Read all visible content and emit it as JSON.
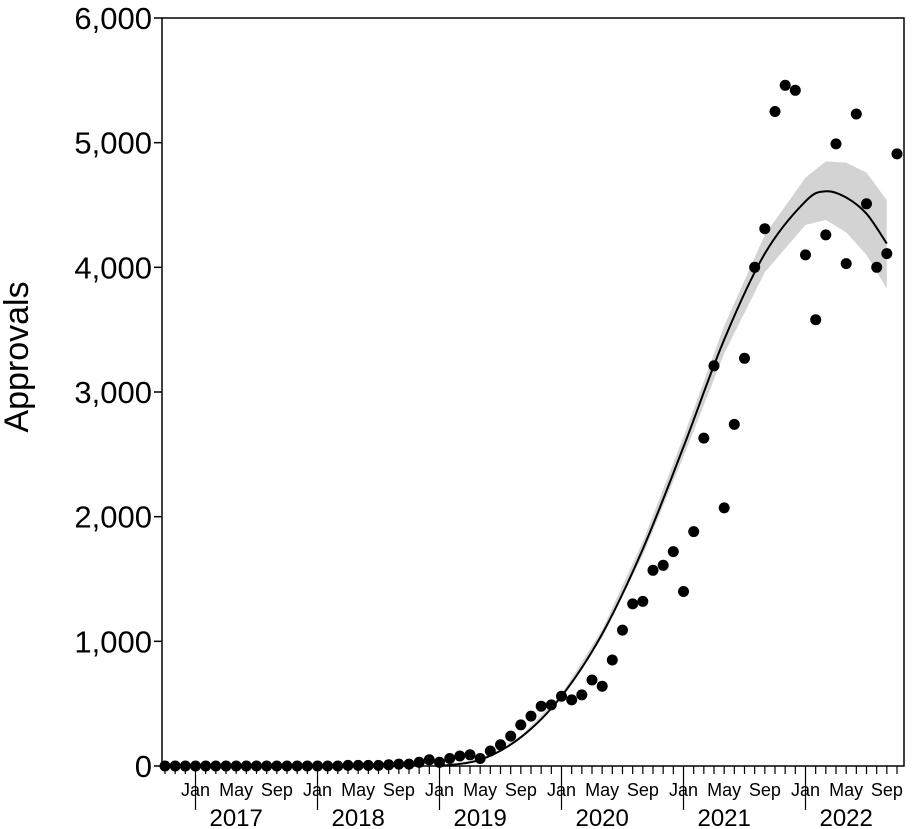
{
  "chart_data": {
    "type": "scatter",
    "title": "",
    "xlabel": "",
    "ylabel": "Approvals",
    "ylim": [
      0,
      6000
    ],
    "y_ticks": [
      0,
      1000,
      2000,
      3000,
      4000,
      5000,
      6000
    ],
    "y_tick_labels": [
      "0",
      "1,000",
      "2,000",
      "3,000",
      "4,000",
      "5,000",
      "6,000"
    ],
    "xlim": [
      "2016-10",
      "2022-09"
    ],
    "x_month_ticks": [
      {
        "date": "2017-01",
        "label": "Jan"
      },
      {
        "date": "2017-05",
        "label": "May"
      },
      {
        "date": "2017-09",
        "label": "Sep"
      },
      {
        "date": "2018-01",
        "label": "Jan"
      },
      {
        "date": "2018-05",
        "label": "May"
      },
      {
        "date": "2018-09",
        "label": "Sep"
      },
      {
        "date": "2019-01",
        "label": "Jan"
      },
      {
        "date": "2019-05",
        "label": "May"
      },
      {
        "date": "2019-09",
        "label": "Sep"
      },
      {
        "date": "2020-01",
        "label": "Jan"
      },
      {
        "date": "2020-05",
        "label": "May"
      },
      {
        "date": "2020-09",
        "label": "Sep"
      },
      {
        "date": "2021-01",
        "label": "Jan"
      },
      {
        "date": "2021-05",
        "label": "May"
      },
      {
        "date": "2021-09",
        "label": "Sep"
      },
      {
        "date": "2022-01",
        "label": "Jan"
      },
      {
        "date": "2022-05",
        "label": "May"
      },
      {
        "date": "2022-09",
        "label": "Sep"
      }
    ],
    "x_year_labels": [
      {
        "date": "2017-05",
        "label": "2017"
      },
      {
        "date": "2018-05",
        "label": "2018"
      },
      {
        "date": "2019-05",
        "label": "2019"
      },
      {
        "date": "2020-05",
        "label": "2020"
      },
      {
        "date": "2021-05",
        "label": "2021"
      },
      {
        "date": "2022-05",
        "label": "2022"
      }
    ],
    "series": [
      {
        "type": "scatter",
        "points": [
          {
            "x": "2016-10",
            "y": 0
          },
          {
            "x": "2016-11",
            "y": 0
          },
          {
            "x": "2016-12",
            "y": 0
          },
          {
            "x": "2017-01",
            "y": 0
          },
          {
            "x": "2017-02",
            "y": 0
          },
          {
            "x": "2017-03",
            "y": 0
          },
          {
            "x": "2017-04",
            "y": 0
          },
          {
            "x": "2017-05",
            "y": 0
          },
          {
            "x": "2017-06",
            "y": 0
          },
          {
            "x": "2017-07",
            "y": 0
          },
          {
            "x": "2017-08",
            "y": 0
          },
          {
            "x": "2017-09",
            "y": 0
          },
          {
            "x": "2017-10",
            "y": 0
          },
          {
            "x": "2017-11",
            "y": 0
          },
          {
            "x": "2017-12",
            "y": 0
          },
          {
            "x": "2018-01",
            "y": 0
          },
          {
            "x": "2018-02",
            "y": 0
          },
          {
            "x": "2018-03",
            "y": 0
          },
          {
            "x": "2018-04",
            "y": 5
          },
          {
            "x": "2018-05",
            "y": 5
          },
          {
            "x": "2018-06",
            "y": 5
          },
          {
            "x": "2018-07",
            "y": 5
          },
          {
            "x": "2018-08",
            "y": 10
          },
          {
            "x": "2018-09",
            "y": 15
          },
          {
            "x": "2018-10",
            "y": 15
          },
          {
            "x": "2018-11",
            "y": 30
          },
          {
            "x": "2018-12",
            "y": 50
          },
          {
            "x": "2019-01",
            "y": 30
          },
          {
            "x": "2019-02",
            "y": 60
          },
          {
            "x": "2019-03",
            "y": 80
          },
          {
            "x": "2019-04",
            "y": 90
          },
          {
            "x": "2019-05",
            "y": 60
          },
          {
            "x": "2019-06",
            "y": 120
          },
          {
            "x": "2019-07",
            "y": 170
          },
          {
            "x": "2019-08",
            "y": 240
          },
          {
            "x": "2019-09",
            "y": 330
          },
          {
            "x": "2019-10",
            "y": 400
          },
          {
            "x": "2019-11",
            "y": 480
          },
          {
            "x": "2019-12",
            "y": 490
          },
          {
            "x": "2020-01",
            "y": 560
          },
          {
            "x": "2020-02",
            "y": 530
          },
          {
            "x": "2020-03",
            "y": 570
          },
          {
            "x": "2020-04",
            "y": 690
          },
          {
            "x": "2020-05",
            "y": 640
          },
          {
            "x": "2020-06",
            "y": 850
          },
          {
            "x": "2020-07",
            "y": 1090
          },
          {
            "x": "2020-08",
            "y": 1300
          },
          {
            "x": "2020-09",
            "y": 1320
          },
          {
            "x": "2020-10",
            "y": 1570
          },
          {
            "x": "2020-11",
            "y": 1610
          },
          {
            "x": "2020-12",
            "y": 1720
          },
          {
            "x": "2021-01",
            "y": 1400
          },
          {
            "x": "2021-02",
            "y": 1880
          },
          {
            "x": "2021-03",
            "y": 2630
          },
          {
            "x": "2021-04",
            "y": 3210
          },
          {
            "x": "2021-05",
            "y": 2070
          },
          {
            "x": "2021-06",
            "y": 2740
          },
          {
            "x": "2021-07",
            "y": 3270
          },
          {
            "x": "2021-08",
            "y": 4000
          },
          {
            "x": "2021-09",
            "y": 4310
          },
          {
            "x": "2021-10",
            "y": 5250
          },
          {
            "x": "2021-11",
            "y": 5460
          },
          {
            "x": "2021-12",
            "y": 5420
          },
          {
            "x": "2022-01",
            "y": 4100
          },
          {
            "x": "2022-02",
            "y": 3580
          },
          {
            "x": "2022-03",
            "y": 4260
          },
          {
            "x": "2022-04",
            "y": 4990
          },
          {
            "x": "2022-05",
            "y": 4030
          },
          {
            "x": "2022-06",
            "y": 5230
          },
          {
            "x": "2022-07",
            "y": 4510
          },
          {
            "x": "2022-08",
            "y": 4000
          },
          {
            "x": "2022-09",
            "y": 4110
          },
          {
            "x": "2022-10",
            "y": 4910
          }
        ]
      },
      {
        "type": "line",
        "points": [
          {
            "x": "2019-01",
            "y": 0
          },
          {
            "x": "2019-05",
            "y": 50
          },
          {
            "x": "2019-09",
            "y": 230
          },
          {
            "x": "2020-01",
            "y": 560
          },
          {
            "x": "2020-05",
            "y": 1060
          },
          {
            "x": "2020-09",
            "y": 1740
          },
          {
            "x": "2021-01",
            "y": 2560
          },
          {
            "x": "2021-05",
            "y": 3420
          },
          {
            "x": "2021-09",
            "y": 4110
          },
          {
            "x": "2022-01",
            "y": 4530
          },
          {
            "x": "2022-03",
            "y": 4610
          },
          {
            "x": "2022-05",
            "y": 4560
          },
          {
            "x": "2022-07",
            "y": 4430
          },
          {
            "x": "2022-09",
            "y": 4190
          }
        ]
      },
      {
        "type": "area",
        "color": "#d3d3d3",
        "lower": [
          {
            "x": "2019-01",
            "y": 0
          },
          {
            "x": "2019-05",
            "y": 50
          },
          {
            "x": "2019-09",
            "y": 230
          },
          {
            "x": "2020-01",
            "y": 550
          },
          {
            "x": "2020-05",
            "y": 1030
          },
          {
            "x": "2020-09",
            "y": 1690
          },
          {
            "x": "2021-01",
            "y": 2480
          },
          {
            "x": "2021-05",
            "y": 3310
          },
          {
            "x": "2021-09",
            "y": 3960
          },
          {
            "x": "2022-01",
            "y": 4340
          },
          {
            "x": "2022-03",
            "y": 4380
          },
          {
            "x": "2022-05",
            "y": 4280
          },
          {
            "x": "2022-07",
            "y": 4100
          },
          {
            "x": "2022-09",
            "y": 3830
          }
        ],
        "upper": [
          {
            "x": "2019-01",
            "y": 0
          },
          {
            "x": "2019-05",
            "y": 55
          },
          {
            "x": "2019-09",
            "y": 240
          },
          {
            "x": "2020-01",
            "y": 575
          },
          {
            "x": "2020-05",
            "y": 1095
          },
          {
            "x": "2020-09",
            "y": 1800
          },
          {
            "x": "2021-01",
            "y": 2640
          },
          {
            "x": "2021-05",
            "y": 3530
          },
          {
            "x": "2021-09",
            "y": 4260
          },
          {
            "x": "2022-01",
            "y": 4720
          },
          {
            "x": "2022-03",
            "y": 4850
          },
          {
            "x": "2022-05",
            "y": 4840
          },
          {
            "x": "2022-07",
            "y": 4760
          },
          {
            "x": "2022-09",
            "y": 4540
          }
        ]
      }
    ],
    "grid": false,
    "legend": "none"
  }
}
